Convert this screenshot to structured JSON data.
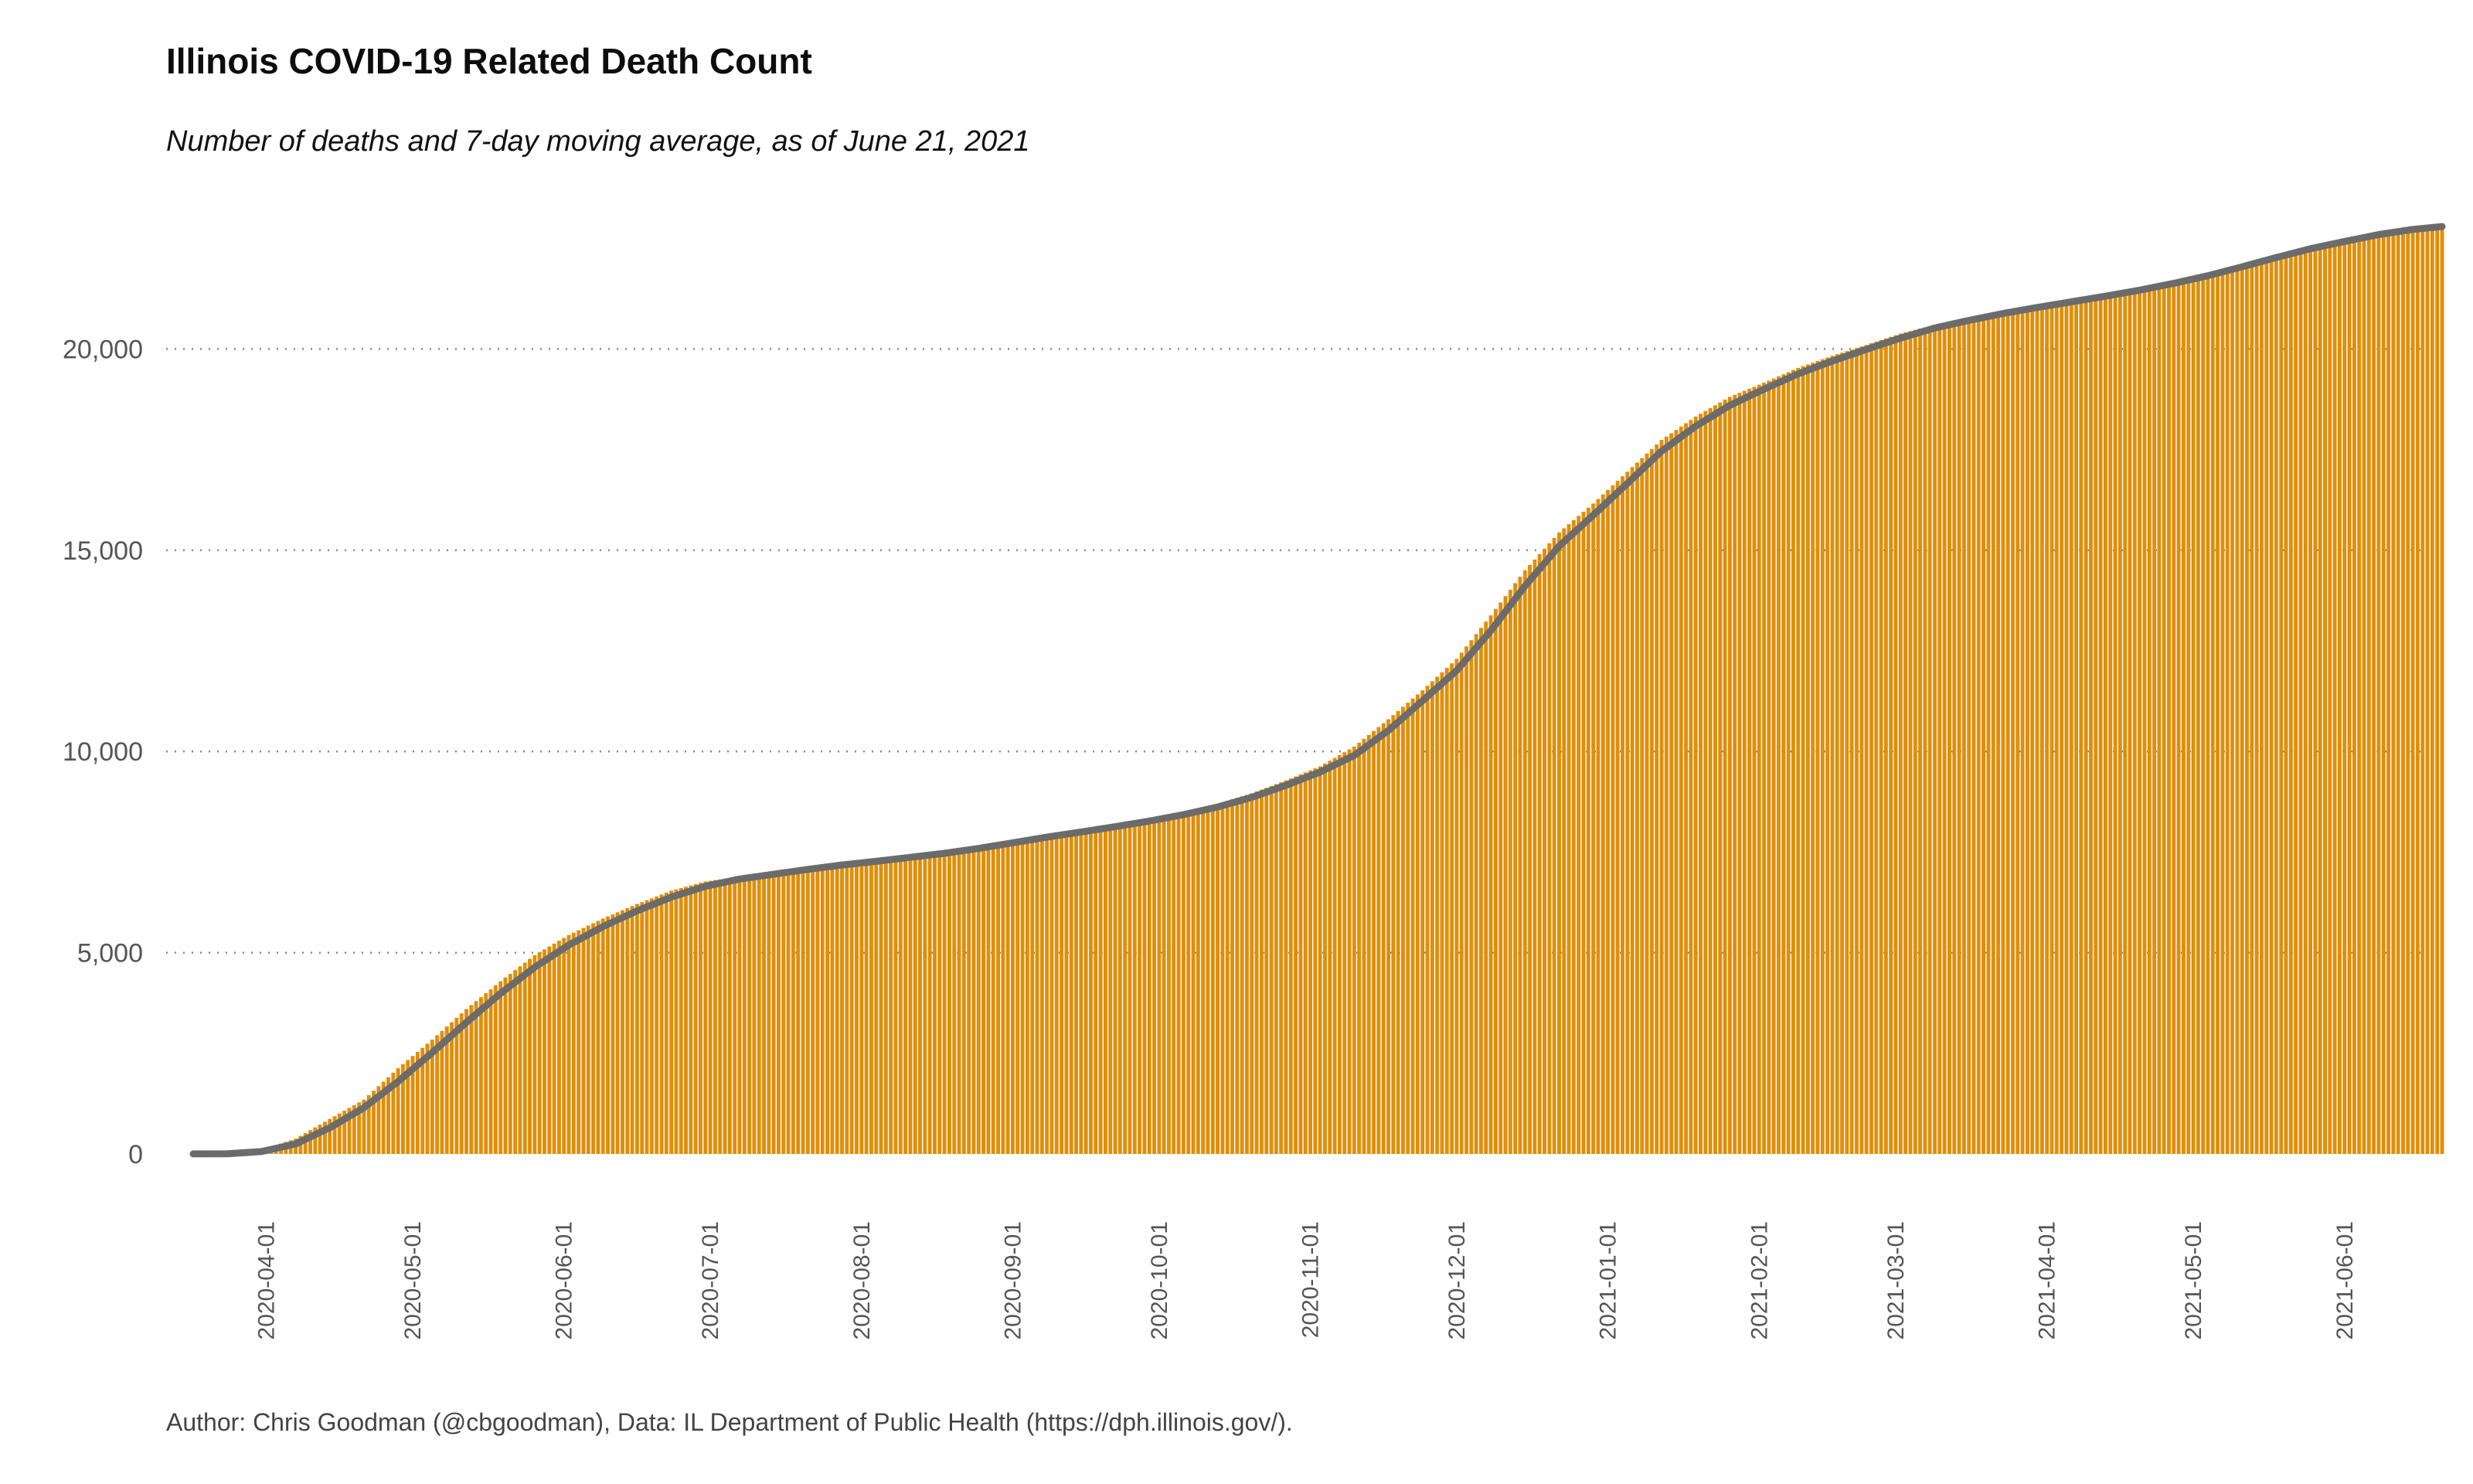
{
  "title": "Illinois COVID-19 Related Death Count",
  "subtitle": "Number of deaths and 7-day moving average, as of June 21, 2021",
  "caption": "Author: Chris Goodman (@cbgoodman), Data: IL Department of Public Health (https://dph.illinois.gov/).",
  "colors": {
    "bars": "#E08E0B",
    "average_line": "#6B6B6B",
    "grid": "#888888",
    "axis_text": "#555555"
  },
  "chart_data": {
    "type": "bar",
    "title": "Illinois COVID-19 Related Death Count",
    "subtitle": "Number of deaths and 7-day moving average, as of June 21, 2021",
    "xlabel": "",
    "ylabel": "",
    "x_range": [
      "2020-03-17",
      "2021-06-21"
    ],
    "ylim": [
      0,
      23100
    ],
    "y_ticks": [
      0,
      5000,
      10000,
      15000,
      20000
    ],
    "y_tick_labels": [
      "0",
      "5,000",
      "10,000",
      "15,000",
      "20,000"
    ],
    "x_ticks": [
      "2020-04-01",
      "2020-05-01",
      "2020-06-01",
      "2020-07-01",
      "2020-08-01",
      "2020-09-01",
      "2020-10-01",
      "2020-11-01",
      "2020-12-01",
      "2021-01-01",
      "2021-02-01",
      "2021-03-01",
      "2021-04-01",
      "2021-05-01",
      "2021-06-01"
    ],
    "grid": "horizontal dotted",
    "legend": "none",
    "series": [
      {
        "kind": "bars",
        "description_visible": "deaths",
        "points": [
          {
            "date": "2020-03-17",
            "value": 1
          },
          {
            "date": "2020-03-24",
            "value": 10
          },
          {
            "date": "2020-03-31",
            "value": 99
          },
          {
            "date": "2020-04-07",
            "value": 380
          },
          {
            "date": "2020-04-14",
            "value": 870
          },
          {
            "date": "2020-04-21",
            "value": 1350
          },
          {
            "date": "2020-04-28",
            "value": 2130
          },
          {
            "date": "2020-05-05",
            "value": 2840
          },
          {
            "date": "2020-05-12",
            "value": 3600
          },
          {
            "date": "2020-05-19",
            "value": 4290
          },
          {
            "date": "2020-05-26",
            "value": 4940
          },
          {
            "date": "2020-06-02",
            "value": 5440
          },
          {
            "date": "2020-06-09",
            "value": 5850
          },
          {
            "date": "2020-06-16",
            "value": 6210
          },
          {
            "date": "2020-06-23",
            "value": 6540
          },
          {
            "date": "2020-06-30",
            "value": 6770
          },
          {
            "date": "2020-07-07",
            "value": 6890
          },
          {
            "date": "2020-07-14",
            "value": 7000
          },
          {
            "date": "2020-07-21",
            "value": 7120
          },
          {
            "date": "2020-07-28",
            "value": 7220
          },
          {
            "date": "2020-08-04",
            "value": 7310
          },
          {
            "date": "2020-08-11",
            "value": 7410
          },
          {
            "date": "2020-08-18",
            "value": 7510
          },
          {
            "date": "2020-08-25",
            "value": 7640
          },
          {
            "date": "2020-09-01",
            "value": 7790
          },
          {
            "date": "2020-09-08",
            "value": 7920
          },
          {
            "date": "2020-09-15",
            "value": 8060
          },
          {
            "date": "2020-09-22",
            "value": 8190
          },
          {
            "date": "2020-09-29",
            "value": 8330
          },
          {
            "date": "2020-10-06",
            "value": 8500
          },
          {
            "date": "2020-10-13",
            "value": 8700
          },
          {
            "date": "2020-10-20",
            "value": 8960
          },
          {
            "date": "2020-10-27",
            "value": 9280
          },
          {
            "date": "2020-11-03",
            "value": 9630
          },
          {
            "date": "2020-11-10",
            "value": 10120
          },
          {
            "date": "2020-11-17",
            "value": 10800
          },
          {
            "date": "2020-11-24",
            "value": 11520
          },
          {
            "date": "2020-12-01",
            "value": 12300
          },
          {
            "date": "2020-12-08",
            "value": 13380
          },
          {
            "date": "2020-12-15",
            "value": 14500
          },
          {
            "date": "2020-12-22",
            "value": 15440
          },
          {
            "date": "2020-12-29",
            "value": 16160
          },
          {
            "date": "2021-01-05",
            "value": 16950
          },
          {
            "date": "2021-01-12",
            "value": 17740
          },
          {
            "date": "2021-01-19",
            "value": 18320
          },
          {
            "date": "2021-01-26",
            "value": 18810
          },
          {
            "date": "2021-02-02",
            "value": 19160
          },
          {
            "date": "2021-02-09",
            "value": 19530
          },
          {
            "date": "2021-02-16",
            "value": 19830
          },
          {
            "date": "2021-02-23",
            "value": 20100
          },
          {
            "date": "2021-03-02",
            "value": 20380
          },
          {
            "date": "2021-03-09",
            "value": 20600
          },
          {
            "date": "2021-03-16",
            "value": 20780
          },
          {
            "date": "2021-03-23",
            "value": 20940
          },
          {
            "date": "2021-03-30",
            "value": 21080
          },
          {
            "date": "2021-04-06",
            "value": 21220
          },
          {
            "date": "2021-04-13",
            "value": 21360
          },
          {
            "date": "2021-04-20",
            "value": 21520
          },
          {
            "date": "2021-04-27",
            "value": 21690
          },
          {
            "date": "2021-05-04",
            "value": 21890
          },
          {
            "date": "2021-05-11",
            "value": 22110
          },
          {
            "date": "2021-05-18",
            "value": 22340
          },
          {
            "date": "2021-05-25",
            "value": 22550
          },
          {
            "date": "2021-06-01",
            "value": 22720
          },
          {
            "date": "2021-06-08",
            "value": 22880
          },
          {
            "date": "2021-06-15",
            "value": 23010
          },
          {
            "date": "2021-06-21",
            "value": 23070
          }
        ]
      },
      {
        "kind": "line",
        "description_visible": "7-day moving average",
        "points": [
          {
            "date": "2020-03-17",
            "value": 1
          },
          {
            "date": "2020-03-24",
            "value": 6
          },
          {
            "date": "2020-03-31",
            "value": 60
          },
          {
            "date": "2020-04-07",
            "value": 250
          },
          {
            "date": "2020-04-14",
            "value": 650
          },
          {
            "date": "2020-04-21",
            "value": 1150
          },
          {
            "date": "2020-04-28",
            "value": 1800
          },
          {
            "date": "2020-05-05",
            "value": 2520
          },
          {
            "date": "2020-05-12",
            "value": 3270
          },
          {
            "date": "2020-05-19",
            "value": 3990
          },
          {
            "date": "2020-05-26",
            "value": 4640
          },
          {
            "date": "2020-06-02",
            "value": 5190
          },
          {
            "date": "2020-06-09",
            "value": 5650
          },
          {
            "date": "2020-06-16",
            "value": 6040
          },
          {
            "date": "2020-06-23",
            "value": 6380
          },
          {
            "date": "2020-06-30",
            "value": 6650
          },
          {
            "date": "2020-07-07",
            "value": 6830
          },
          {
            "date": "2020-07-14",
            "value": 6950
          },
          {
            "date": "2020-07-21",
            "value": 7070
          },
          {
            "date": "2020-07-28",
            "value": 7180
          },
          {
            "date": "2020-08-04",
            "value": 7270
          },
          {
            "date": "2020-08-11",
            "value": 7370
          },
          {
            "date": "2020-08-18",
            "value": 7470
          },
          {
            "date": "2020-08-25",
            "value": 7590
          },
          {
            "date": "2020-09-01",
            "value": 7730
          },
          {
            "date": "2020-09-08",
            "value": 7870
          },
          {
            "date": "2020-09-15",
            "value": 8000
          },
          {
            "date": "2020-09-22",
            "value": 8130
          },
          {
            "date": "2020-09-29",
            "value": 8270
          },
          {
            "date": "2020-10-06",
            "value": 8430
          },
          {
            "date": "2020-10-13",
            "value": 8620
          },
          {
            "date": "2020-10-20",
            "value": 8860
          },
          {
            "date": "2020-10-27",
            "value": 9160
          },
          {
            "date": "2020-11-03",
            "value": 9490
          },
          {
            "date": "2020-11-10",
            "value": 9900
          },
          {
            "date": "2020-11-17",
            "value": 10520
          },
          {
            "date": "2020-11-24",
            "value": 11260
          },
          {
            "date": "2020-12-01",
            "value": 12010
          },
          {
            "date": "2020-12-08",
            "value": 13000
          },
          {
            "date": "2020-12-15",
            "value": 14110
          },
          {
            "date": "2020-12-22",
            "value": 15100
          },
          {
            "date": "2020-12-29",
            "value": 15870
          },
          {
            "date": "2021-01-05",
            "value": 16660
          },
          {
            "date": "2021-01-12",
            "value": 17460
          },
          {
            "date": "2021-01-19",
            "value": 18080
          },
          {
            "date": "2021-01-26",
            "value": 18600
          },
          {
            "date": "2021-02-02",
            "value": 19000
          },
          {
            "date": "2021-02-09",
            "value": 19380
          },
          {
            "date": "2021-02-16",
            "value": 19700
          },
          {
            "date": "2021-02-23",
            "value": 19990
          },
          {
            "date": "2021-03-02",
            "value": 20270
          },
          {
            "date": "2021-03-09",
            "value": 20520
          },
          {
            "date": "2021-03-16",
            "value": 20710
          },
          {
            "date": "2021-03-23",
            "value": 20880
          },
          {
            "date": "2021-03-30",
            "value": 21030
          },
          {
            "date": "2021-04-06",
            "value": 21170
          },
          {
            "date": "2021-04-13",
            "value": 21310
          },
          {
            "date": "2021-04-20",
            "value": 21460
          },
          {
            "date": "2021-04-27",
            "value": 21630
          },
          {
            "date": "2021-05-04",
            "value": 21820
          },
          {
            "date": "2021-05-11",
            "value": 22040
          },
          {
            "date": "2021-05-18",
            "value": 22270
          },
          {
            "date": "2021-05-25",
            "value": 22490
          },
          {
            "date": "2021-06-01",
            "value": 22670
          },
          {
            "date": "2021-06-08",
            "value": 22840
          },
          {
            "date": "2021-06-15",
            "value": 22970
          },
          {
            "date": "2021-06-21",
            "value": 23040
          }
        ]
      }
    ]
  }
}
